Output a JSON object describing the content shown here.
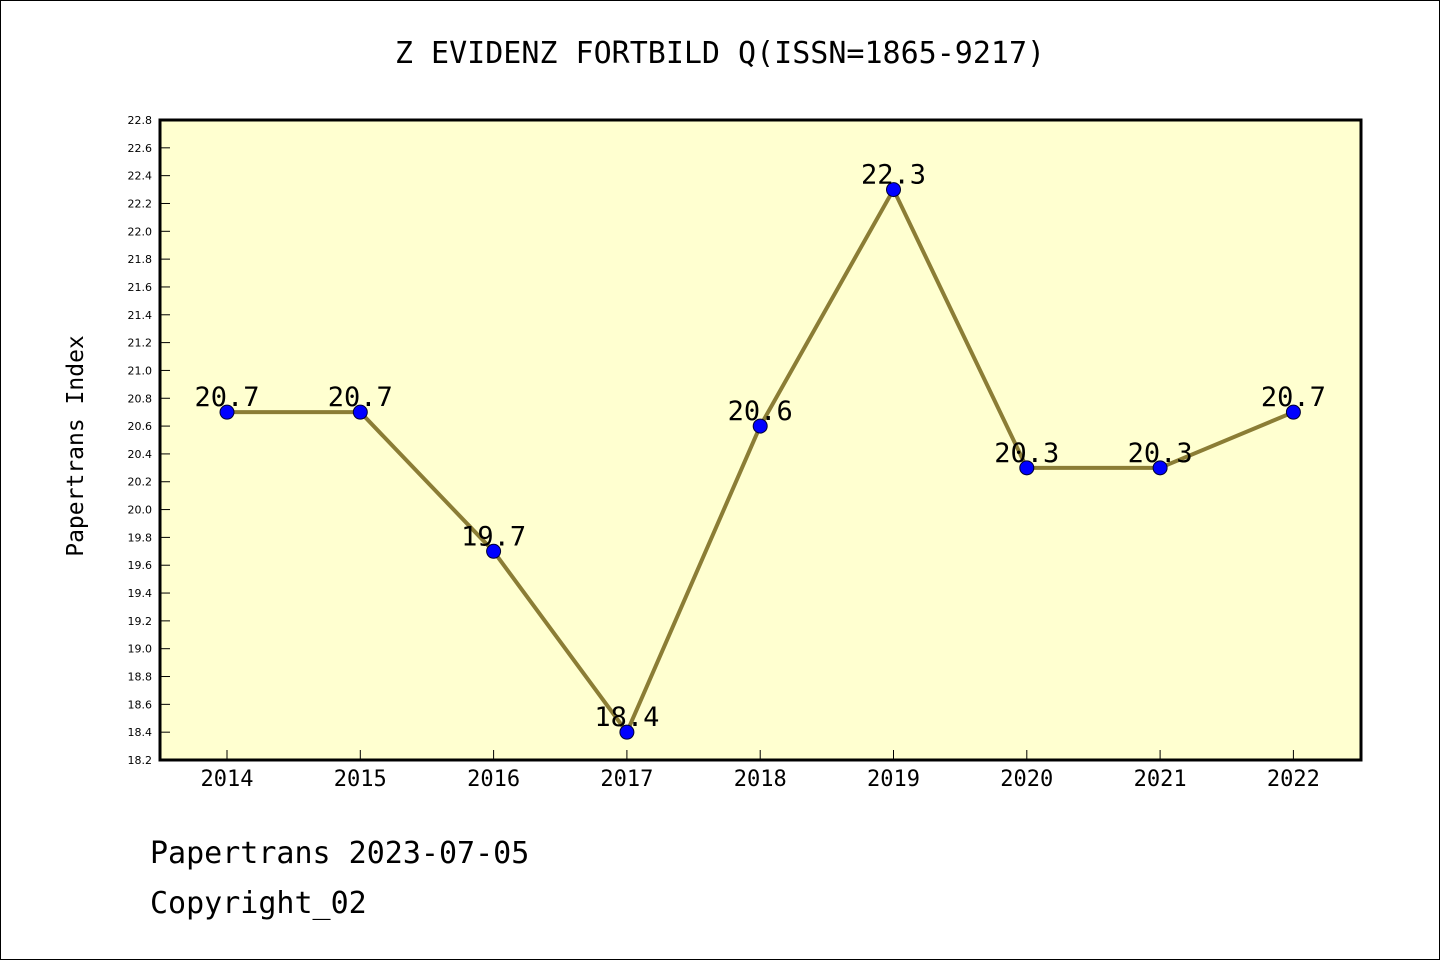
{
  "chart_data": {
    "type": "line",
    "title": "Z EVIDENZ FORTBILD Q(ISSN=1865-9217)",
    "xlabel": "",
    "ylabel": "Papertrans Index",
    "categories": [
      "2014",
      "2015",
      "2016",
      "2017",
      "2018",
      "2019",
      "2020",
      "2021",
      "2022"
    ],
    "values": [
      20.7,
      20.7,
      19.7,
      18.4,
      20.6,
      22.3,
      20.3,
      20.3,
      20.7
    ],
    "data_labels": [
      "20.7",
      "20.7",
      "19.7",
      "18.4",
      "20.6",
      "22.3",
      "20.3",
      "20.3",
      "20.7"
    ],
    "ylim": [
      18.2,
      22.8
    ],
    "yticks": [
      "18.2",
      "18.4",
      "18.6",
      "18.8",
      "19.0",
      "19.2",
      "19.4",
      "19.6",
      "19.8",
      "20.0",
      "20.2",
      "20.4",
      "20.6",
      "20.8",
      "21.0",
      "21.2",
      "21.4",
      "21.6",
      "21.8",
      "22.0",
      "22.2",
      "22.4",
      "22.6",
      "22.8"
    ],
    "grid": false,
    "legend": "none",
    "colors": {
      "plot_background": "#ffffd0",
      "line": "#8b7d35",
      "marker": "#0000ff",
      "axis": "#000000"
    }
  },
  "footer": {
    "date_text": "Papertrans 2023-07-05",
    "copyright_text": "Copyright_02"
  }
}
